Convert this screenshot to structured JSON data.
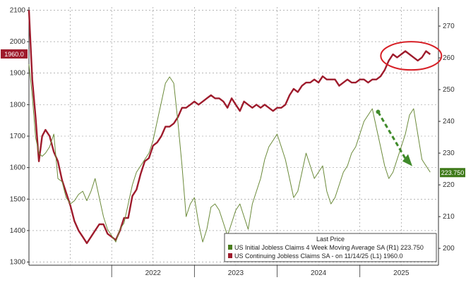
{
  "chart_data": {
    "type": "line",
    "title": "",
    "xlabel": "",
    "legend": {
      "title": "Last Price",
      "placement": "bottom-right"
    },
    "x_ticks": [
      "2022",
      "2023",
      "2024",
      "2025"
    ],
    "left_axis": {
      "ylim": [
        1290,
        2110
      ],
      "ticks": [
        "1300",
        "1400",
        "1500",
        "1600",
        "1700",
        "1800",
        "1900",
        "2000",
        "2100"
      ]
    },
    "right_axis": {
      "ylim": [
        194.7,
        276
      ],
      "ticks": [
        "200",
        "210",
        "220",
        "230",
        "240",
        "250",
        "260",
        "270"
      ]
    },
    "grid": true,
    "series": [
      {
        "name": "US Continuing Jobless Claims SA - on 11/14/25",
        "axis_tag": "(L1)",
        "axis": "left",
        "color": "#9e1b2c",
        "last_value": "1960.0",
        "x": [
          2021.0,
          2021.04,
          2021.08,
          2021.12,
          2021.16,
          2021.2,
          2021.25,
          2021.3,
          2021.35,
          2021.4,
          2021.45,
          2021.5,
          2021.55,
          2021.6,
          2021.65,
          2021.7,
          2021.75,
          2021.8,
          2021.85,
          2021.9,
          2021.95,
          2022.0,
          2022.05,
          2022.1,
          2022.15,
          2022.2,
          2022.25,
          2022.3,
          2022.35,
          2022.4,
          2022.45,
          2022.5,
          2022.55,
          2022.6,
          2022.65,
          2022.7,
          2022.75,
          2022.8,
          2022.85,
          2022.9,
          2022.95,
          2023.0,
          2023.05,
          2023.1,
          2023.15,
          2023.2,
          2023.25,
          2023.3,
          2023.35,
          2023.4,
          2023.45,
          2023.5,
          2023.55,
          2023.6,
          2023.65,
          2023.7,
          2023.75,
          2023.8,
          2023.85,
          2023.9,
          2023.95,
          2024.0,
          2024.05,
          2024.1,
          2024.15,
          2024.2,
          2024.25,
          2024.3,
          2024.35,
          2024.4,
          2024.45,
          2024.5,
          2024.55,
          2024.6,
          2024.65,
          2024.7,
          2024.75,
          2024.8,
          2024.85,
          2024.9,
          2024.95,
          2025.0,
          2025.05,
          2025.1,
          2025.15,
          2025.2,
          2025.25,
          2025.3,
          2025.35,
          2025.4,
          2025.45,
          2025.5,
          2025.55,
          2025.6,
          2025.65,
          2025.7,
          2025.75,
          2025.8,
          2025.85
        ],
        "values": [
          2100,
          1880,
          1760,
          1620,
          1700,
          1720,
          1700,
          1650,
          1620,
          1560,
          1520,
          1480,
          1430,
          1400,
          1380,
          1360,
          1380,
          1400,
          1420,
          1420,
          1390,
          1380,
          1370,
          1400,
          1440,
          1440,
          1510,
          1530,
          1580,
          1620,
          1630,
          1670,
          1680,
          1700,
          1730,
          1730,
          1740,
          1760,
          1790,
          1790,
          1800,
          1810,
          1800,
          1810,
          1820,
          1830,
          1820,
          1820,
          1810,
          1790,
          1820,
          1800,
          1780,
          1810,
          1800,
          1790,
          1800,
          1790,
          1800,
          1790,
          1780,
          1790,
          1790,
          1800,
          1830,
          1850,
          1840,
          1860,
          1870,
          1870,
          1880,
          1870,
          1890,
          1880,
          1880,
          1880,
          1860,
          1870,
          1880,
          1870,
          1870,
          1880,
          1880,
          1870,
          1880,
          1880,
          1890,
          1910,
          1940,
          1960,
          1950,
          1960,
          1970,
          1960,
          1950,
          1940,
          1950,
          1970,
          1960
        ]
      },
      {
        "name": "US Initial Jobless Claims 4 Week Moving Average SA",
        "axis_tag": "(R1)",
        "axis": "right",
        "color": "#6b8a3a",
        "last_value": "223.750",
        "legend_value": "223.750",
        "x": [
          2021.0,
          2021.04,
          2021.08,
          2021.12,
          2021.16,
          2021.2,
          2021.25,
          2021.3,
          2021.35,
          2021.4,
          2021.45,
          2021.5,
          2021.55,
          2021.6,
          2021.65,
          2021.7,
          2021.75,
          2021.8,
          2021.85,
          2021.9,
          2021.95,
          2022.0,
          2022.05,
          2022.1,
          2022.15,
          2022.2,
          2022.25,
          2022.3,
          2022.35,
          2022.4,
          2022.45,
          2022.5,
          2022.55,
          2022.6,
          2022.65,
          2022.7,
          2022.75,
          2022.8,
          2022.85,
          2022.9,
          2022.95,
          2023.0,
          2023.05,
          2023.1,
          2023.15,
          2023.2,
          2023.25,
          2023.3,
          2023.35,
          2023.4,
          2023.45,
          2023.5,
          2023.55,
          2023.6,
          2023.65,
          2023.7,
          2023.75,
          2023.8,
          2023.85,
          2023.9,
          2023.95,
          2024.0,
          2024.05,
          2024.1,
          2024.15,
          2024.2,
          2024.25,
          2024.3,
          2024.35,
          2024.4,
          2024.45,
          2024.5,
          2024.55,
          2024.6,
          2024.65,
          2024.7,
          2024.75,
          2024.8,
          2024.85,
          2024.9,
          2024.95,
          2025.0,
          2025.05,
          2025.1,
          2025.15,
          2025.2,
          2025.25,
          2025.3,
          2025.35,
          2025.4,
          2025.45,
          2025.5,
          2025.55,
          2025.6,
          2025.65,
          2025.7,
          2025.75,
          2025.8,
          2025.85
        ],
        "values": [
          258,
          248,
          235,
          230,
          229,
          230,
          232,
          236,
          222,
          221,
          216,
          214,
          215,
          217,
          218,
          215,
          218,
          222,
          216,
          210,
          206,
          204,
          202,
          206,
          208,
          214,
          220,
          224,
          226,
          228,
          230,
          234,
          240,
          246,
          252,
          254,
          252,
          240,
          226,
          210,
          214,
          216,
          208,
          202,
          206,
          213,
          214,
          212,
          208,
          204,
          208,
          212,
          214,
          210,
          206,
          214,
          218,
          222,
          228,
          232,
          234,
          236,
          232,
          228,
          222,
          216,
          218,
          224,
          230,
          226,
          222,
          224,
          226,
          218,
          214,
          216,
          220,
          224,
          226,
          230,
          232,
          236,
          240,
          242,
          244,
          238,
          232,
          226,
          222,
          224,
          228,
          232,
          236,
          242,
          244,
          236,
          228,
          226,
          224
        ]
      }
    ],
    "annotations": [
      {
        "type": "ellipse",
        "description": "red circle highlighting recent continuing claims peak"
      },
      {
        "type": "arrow",
        "description": "green dashed downward arrow on initial claims"
      }
    ]
  }
}
